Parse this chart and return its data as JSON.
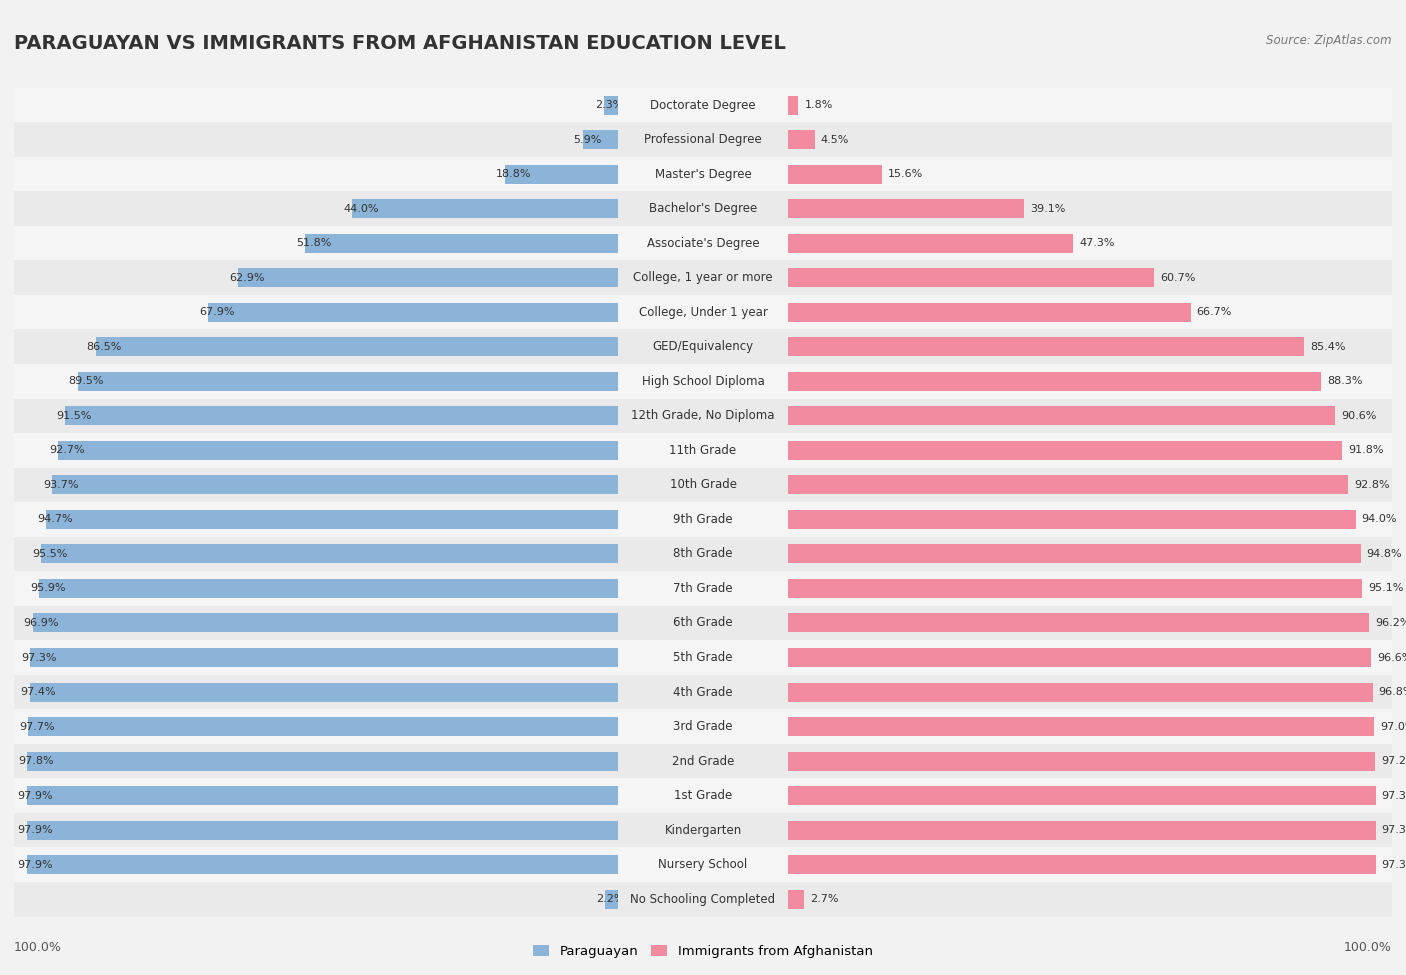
{
  "title": "PARAGUAYAN VS IMMIGRANTS FROM AFGHANISTAN EDUCATION LEVEL",
  "source": "Source: ZipAtlas.com",
  "categories": [
    "No Schooling Completed",
    "Nursery School",
    "Kindergarten",
    "1st Grade",
    "2nd Grade",
    "3rd Grade",
    "4th Grade",
    "5th Grade",
    "6th Grade",
    "7th Grade",
    "8th Grade",
    "9th Grade",
    "10th Grade",
    "11th Grade",
    "12th Grade, No Diploma",
    "High School Diploma",
    "GED/Equivalency",
    "College, Under 1 year",
    "College, 1 year or more",
    "Associate's Degree",
    "Bachelor's Degree",
    "Master's Degree",
    "Professional Degree",
    "Doctorate Degree"
  ],
  "paraguayan": [
    2.2,
    97.9,
    97.9,
    97.9,
    97.8,
    97.7,
    97.4,
    97.3,
    96.9,
    95.9,
    95.5,
    94.7,
    93.7,
    92.7,
    91.5,
    89.5,
    86.5,
    67.9,
    62.9,
    51.8,
    44.0,
    18.8,
    5.9,
    2.3
  ],
  "afghanistan": [
    2.7,
    97.3,
    97.3,
    97.3,
    97.2,
    97.0,
    96.8,
    96.6,
    96.2,
    95.1,
    94.8,
    94.0,
    92.8,
    91.8,
    90.6,
    88.3,
    85.4,
    66.7,
    60.7,
    47.3,
    39.1,
    15.6,
    4.5,
    1.8
  ],
  "blue_color": "#8BB4D8",
  "pink_color": "#F28AA0",
  "background_color": "#F2F2F2",
  "row_bg_color": "#E8E8E8",
  "title_fontsize": 14,
  "label_fontsize": 8.5,
  "value_fontsize": 8,
  "legend_fontsize": 9.5
}
